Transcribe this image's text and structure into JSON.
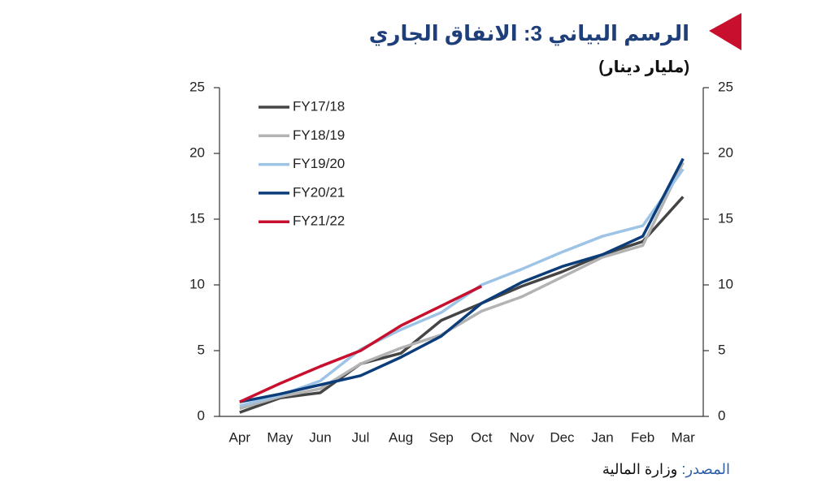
{
  "chart_data": {
    "type": "line",
    "title": "الرسم البياني 3: الانفاق الجاري",
    "subtitle": "(مليار دينار)",
    "source_label": "المصدر:",
    "source": "وزارة المالية",
    "categories": [
      "Apr",
      "May",
      "Jun",
      "Jul",
      "Aug",
      "Sep",
      "Oct",
      "Nov",
      "Dec",
      "Jan",
      "Feb",
      "Mar"
    ],
    "series": [
      {
        "name": "FY17/18",
        "color": "#454545",
        "values": [
          0.3,
          1.4,
          1.8,
          4.0,
          4.8,
          7.3,
          8.6,
          9.9,
          11.0,
          12.3,
          13.3,
          16.7
        ]
      },
      {
        "name": "FY18/19",
        "color": "#b3b3b3",
        "values": [
          0.6,
          1.5,
          2.1,
          4.0,
          5.2,
          6.2,
          8.0,
          9.1,
          10.6,
          12.1,
          13.0,
          19.3
        ]
      },
      {
        "name": "FY19/20",
        "color": "#9dc3e6",
        "values": [
          0.8,
          1.6,
          2.7,
          5.1,
          6.6,
          7.9,
          10.0,
          11.2,
          12.5,
          13.7,
          14.5,
          18.8
        ]
      },
      {
        "name": "FY20/21",
        "color": "#0b3d7a",
        "values": [
          1.1,
          1.7,
          2.4,
          3.1,
          4.5,
          6.1,
          8.6,
          10.2,
          11.4,
          12.3,
          13.7,
          19.6
        ]
      },
      {
        "name": "FY21/22",
        "color": "#c8102e",
        "values": [
          1.1,
          2.5,
          3.8,
          5.0,
          6.9,
          8.4,
          9.9,
          null,
          null,
          null,
          null,
          null
        ]
      }
    ],
    "ylim": [
      0,
      25
    ],
    "yticks": [
      0,
      5,
      10,
      15,
      20,
      25
    ],
    "y2lim": [
      0,
      25
    ],
    "y2ticks": [
      0,
      5,
      10,
      15,
      20,
      25
    ],
    "legend": "upper left"
  }
}
